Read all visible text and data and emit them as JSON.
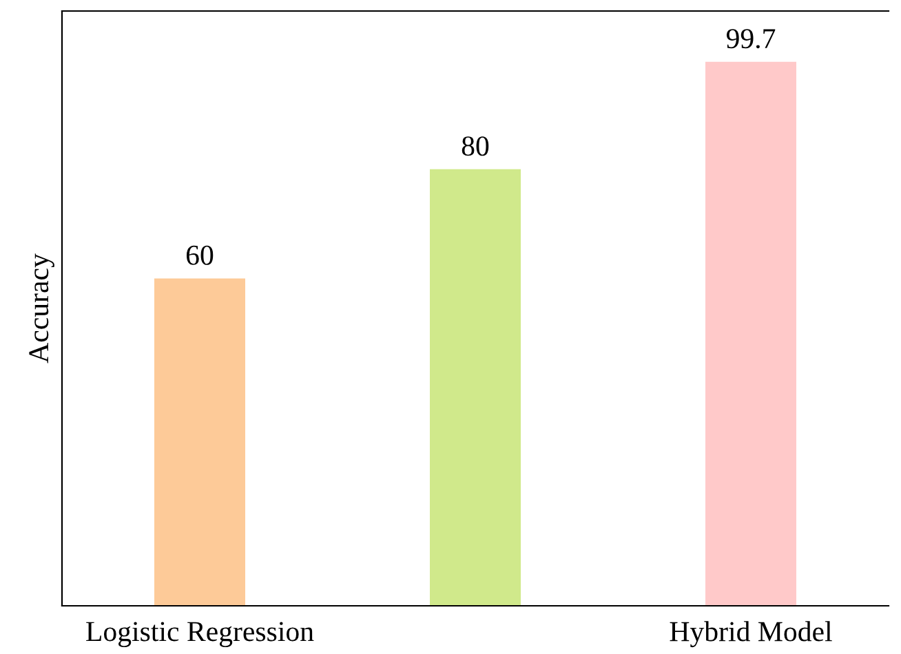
{
  "chart_data": {
    "type": "bar",
    "ylabel": "Accuracy",
    "categories": [
      "Logistic Regression",
      null,
      "Hybrid Model"
    ],
    "values": [
      60,
      80,
      99.7
    ],
    "colors": [
      "#fdca98",
      "#d0e98b",
      "#ffc9c9"
    ],
    "ylim": [
      0,
      109
    ],
    "data_labels": true,
    "tick_labels": "x",
    "grid": false,
    "legend": false
  }
}
